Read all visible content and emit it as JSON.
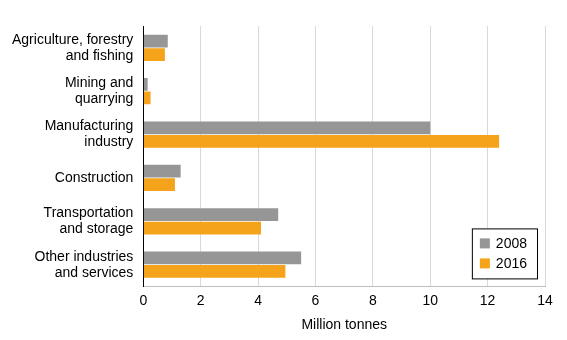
{
  "chart_data": {
    "type": "bar",
    "orientation": "horizontal",
    "categories": [
      "Agriculture, forestry\nand fishing",
      "Mining and\nquarrying",
      "Manufacturing\nindustry",
      "Construction",
      "Transportation\nand storage",
      "Other industries\nand services"
    ],
    "series": [
      {
        "name": "2008",
        "color": "#969696",
        "values": [
          0.85,
          0.15,
          10.0,
          1.3,
          4.7,
          5.5
        ]
      },
      {
        "name": "2016",
        "color": "#f5a31a",
        "values": [
          0.75,
          0.25,
          12.4,
          1.1,
          4.1,
          4.95
        ]
      }
    ],
    "x_label": "Million tonnes",
    "xlim": [
      0,
      14
    ],
    "xticks": [
      0,
      2,
      4,
      6,
      8,
      10,
      12,
      14
    ],
    "grid": true,
    "legend": "lower right"
  }
}
